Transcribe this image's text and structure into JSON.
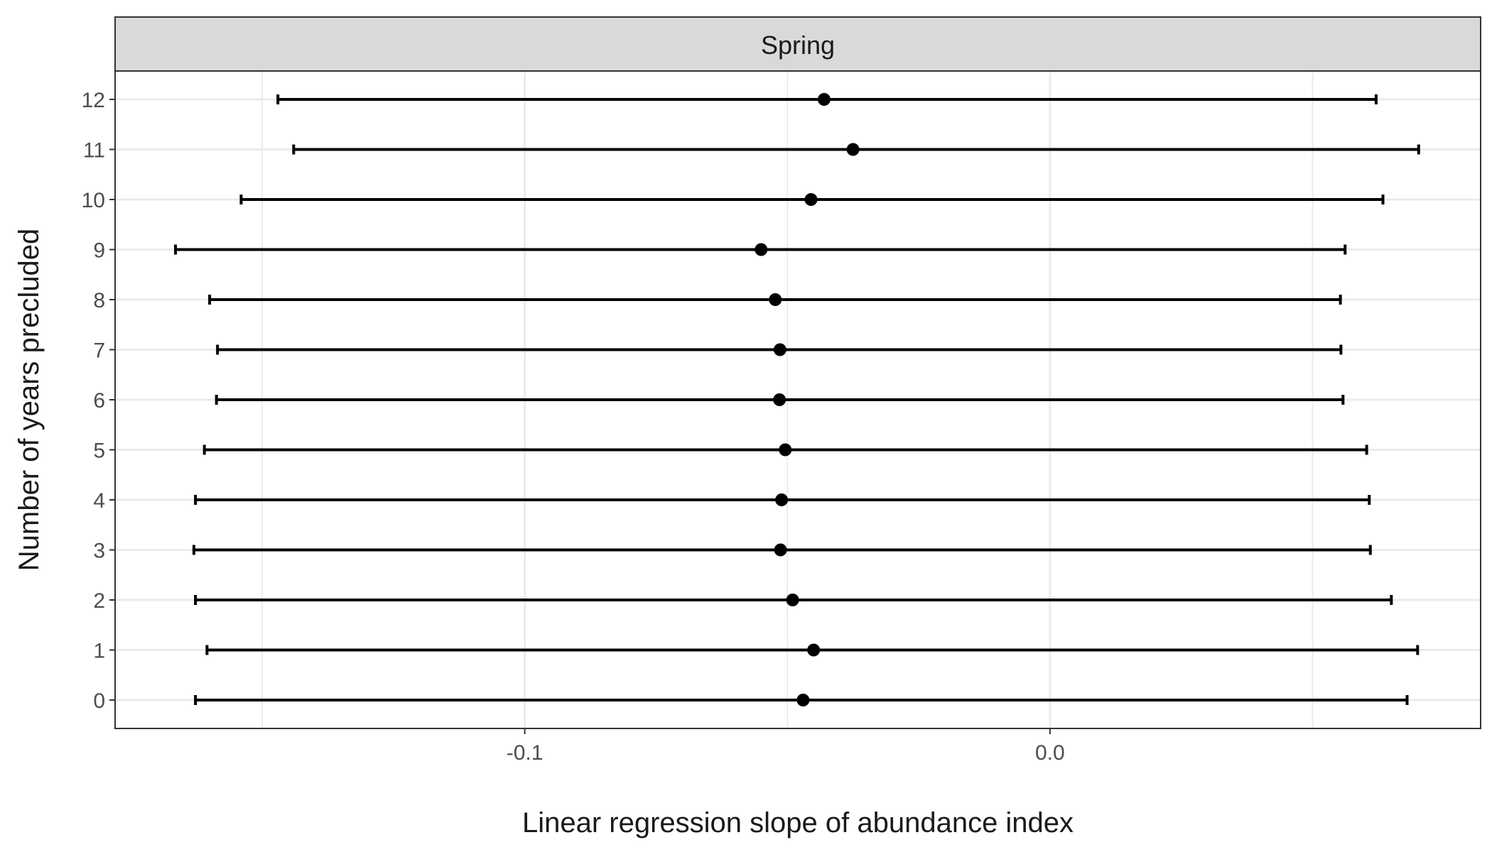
{
  "chart_data": {
    "type": "forest",
    "facet_label": "Spring",
    "xlabel": "Linear regression slope of abundance index",
    "ylabel": "Number of years precluded",
    "xlim": [
      -0.178,
      0.082
    ],
    "x_ticks": [
      -0.1,
      0.0
    ],
    "x_tick_labels": [
      "-0.1",
      "0.0"
    ],
    "x_minor_ticks": [
      -0.15,
      -0.05,
      0.05
    ],
    "categories": [
      "0",
      "1",
      "2",
      "3",
      "4",
      "5",
      "6",
      "7",
      "8",
      "9",
      "10",
      "11",
      "12"
    ],
    "estimate": [
      -0.047,
      -0.045,
      -0.049,
      -0.0513,
      -0.0511,
      -0.0504,
      -0.0515,
      -0.0514,
      -0.0523,
      -0.055,
      -0.0455,
      -0.0375,
      -0.043
    ],
    "lower": [
      -0.1627,
      -0.1605,
      -0.1627,
      -0.163,
      -0.1627,
      -0.161,
      -0.1587,
      -0.1585,
      -0.16,
      -0.1665,
      -0.154,
      -0.144,
      -0.147
    ],
    "upper": [
      0.068,
      0.07,
      0.065,
      0.061,
      0.0608,
      0.0603,
      0.0558,
      0.0554,
      0.0553,
      0.0562,
      0.0634,
      0.0702,
      0.0621
    ],
    "grid": true,
    "colors": {
      "strip_fill": "#d9d9d9",
      "strip_border": "#333333",
      "grid": "#ebebeb",
      "panel_border": "#333333",
      "marks": "#000000",
      "tick_text": "#4d4d4d",
      "title_text": "#1a1a1a"
    }
  }
}
